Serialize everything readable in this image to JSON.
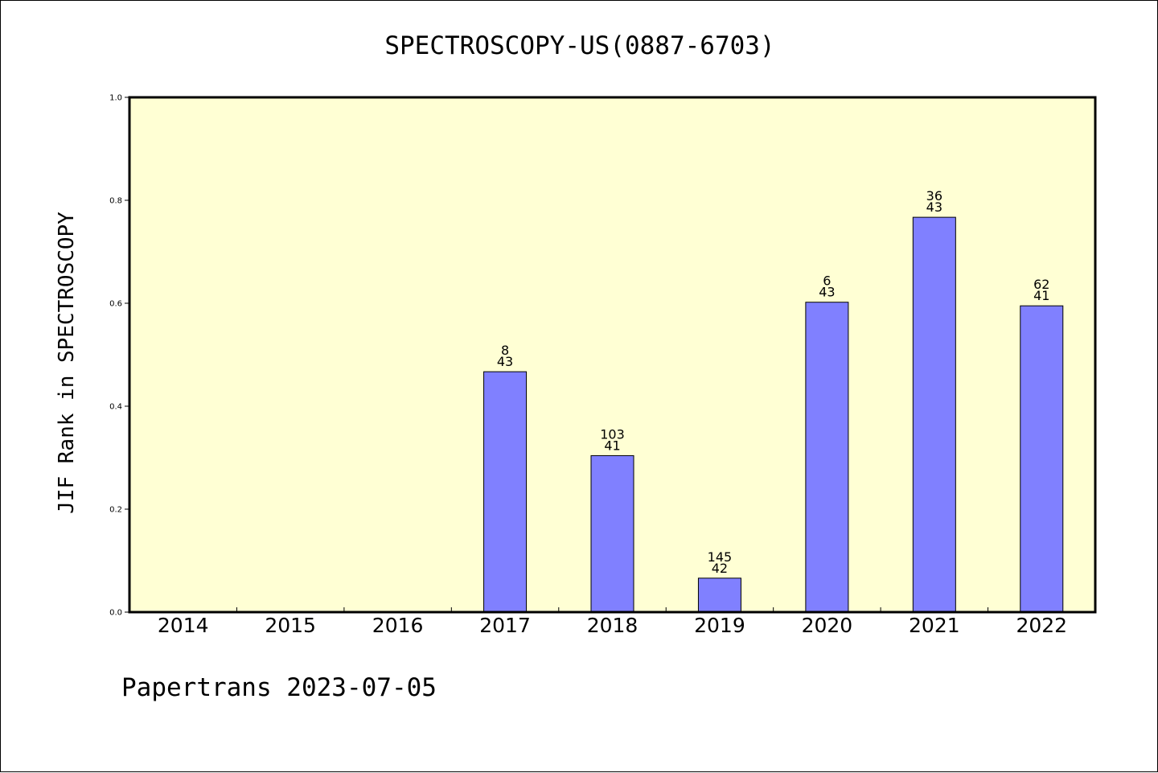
{
  "chart_data": {
    "type": "bar",
    "title": "SPECTROSCOPY-US(0887-6703)",
    "xlabel": "",
    "ylabel": "JIF Rank in SPECTROSCOPY",
    "ylim": [
      0,
      1.0
    ],
    "yticks": [
      "0.0",
      "0.2",
      "0.4",
      "0.6",
      "0.8",
      "1.0"
    ],
    "categories": [
      "2014",
      "2015",
      "2016",
      "2017",
      "2018",
      "2019",
      "2020",
      "2021",
      "2022"
    ],
    "values": [
      null,
      null,
      null,
      0.467,
      0.304,
      0.066,
      0.602,
      0.767,
      0.595
    ],
    "labels_top": [
      "",
      "",
      "",
      "8",
      "103",
      "145",
      "6",
      "36",
      "62"
    ],
    "labels_bottom": [
      "",
      "",
      "",
      "43",
      "41",
      "42",
      "43",
      "43",
      "41"
    ],
    "grid": false,
    "colors": {
      "plot_background": "#ffffd4",
      "bar_fill": "#8080ff",
      "bar_stroke": "#000000"
    }
  },
  "footer": "Papertrans 2023-07-05"
}
